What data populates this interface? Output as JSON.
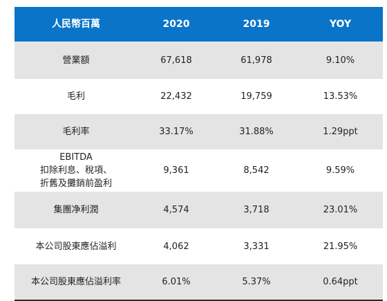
{
  "table": {
    "headers": [
      "人民幣百萬",
      "2020",
      "2019",
      "YOY"
    ],
    "rows": [
      {
        "label": [
          "營業額"
        ],
        "v2020": "67,618",
        "v2019": "61,978",
        "yoy": "9.10%"
      },
      {
        "label": [
          "毛利"
        ],
        "v2020": "22,432",
        "v2019": "19,759",
        "yoy": "13.53%"
      },
      {
        "label": [
          "毛利率"
        ],
        "v2020": "33.17%",
        "v2019": "31.88%",
        "yoy": "1.29ppt"
      },
      {
        "label": [
          "EBITDA",
          "扣除利息、稅項、",
          "折舊及攤銷前盈利"
        ],
        "v2020": "9,361",
        "v2019": "8,542",
        "yoy": "9.59%"
      },
      {
        "label": [
          "集團净利潤"
        ],
        "v2020": "4,574",
        "v2019": "3,718",
        "yoy": "23.01%"
      },
      {
        "label": [
          "本公司股東應佔溢利"
        ],
        "v2020": "4,062",
        "v2019": "3,331",
        "yoy": "21.95%"
      },
      {
        "label": [
          "本公司股東應佔溢利率"
        ],
        "v2020": "6.01%",
        "v2019": "5.37%",
        "yoy": "0.64ppt"
      }
    ]
  },
  "colors": {
    "header_bg": "#0a74c8",
    "header_text": "#ffffff",
    "shaded_row": "#e4e4e4",
    "plain_row": "#ffffff"
  }
}
